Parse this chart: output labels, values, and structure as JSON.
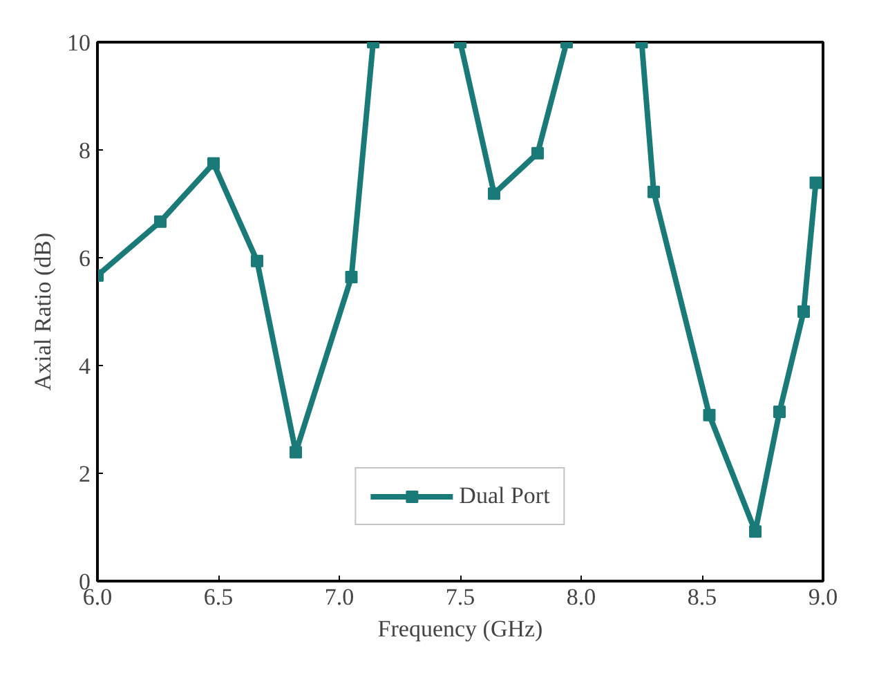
{
  "chart_data": {
    "type": "line",
    "xlabel": "Frequency (GHz)",
    "ylabel": "Axial Ratio (dB)",
    "x": [
      6.0,
      6.26,
      6.48,
      6.66,
      6.82,
      7.05,
      7.14,
      7.3,
      7.5,
      7.64,
      7.82,
      7.94,
      8.1,
      8.25,
      8.3,
      8.53,
      8.72,
      8.82,
      8.92,
      8.97
    ],
    "series": [
      {
        "name": "Dual Port",
        "color": "#1a7a78",
        "values": [
          5.67,
          6.67,
          7.75,
          5.94,
          2.39,
          5.64,
          10,
          null,
          10,
          7.19,
          7.94,
          10,
          null,
          10,
          7.22,
          3.08,
          0.92,
          3.14,
          5.0,
          7.39
        ]
      }
    ],
    "xlim": [
      6.0,
      9.0
    ],
    "ylim": [
      0,
      10
    ],
    "xticks": [
      {
        "value": 6.0,
        "label": "6.0"
      },
      {
        "value": 6.5,
        "label": "6.5"
      },
      {
        "value": 7.0,
        "label": "7.0"
      },
      {
        "value": 7.5,
        "label": "7.5"
      },
      {
        "value": 8.0,
        "label": "8.0"
      },
      {
        "value": 8.5,
        "label": "8.5"
      },
      {
        "value": 9.0,
        "label": "9.0"
      }
    ],
    "yticks": [
      0,
      2,
      4,
      6,
      8,
      10
    ],
    "grid": false,
    "legend": "bottom",
    "marker": "square",
    "line_style": "solid"
  }
}
